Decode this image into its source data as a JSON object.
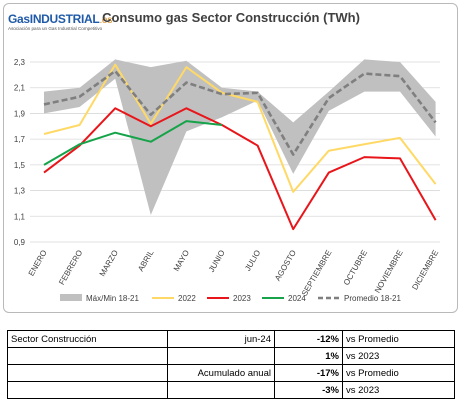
{
  "logo": {
    "name": "GasINDUSTRIAL",
    "suffix": ".es",
    "tagline": "Asociación para un Gas Industrial Competitivo"
  },
  "chart_data": {
    "type": "line",
    "title": "Consumo gas Sector Construcción (TWh)",
    "categories": [
      "ENERO",
      "FEBRERO",
      "MARZO",
      "ABRIL",
      "MAYO",
      "JUNIO",
      "JULIO",
      "AGOSTO",
      "SEPTIEMBRE",
      "OCTUBRE",
      "NOVIEMBRE",
      "DICIEMBRE"
    ],
    "ylim": [
      0.9,
      2.3
    ],
    "yticks": [
      "0,9",
      "1,1",
      "1,3",
      "1,5",
      "1,7",
      "1,9",
      "2,1",
      "2,3"
    ],
    "ytick_values": [
      0.9,
      1.1,
      1.3,
      1.5,
      1.7,
      1.9,
      2.1,
      2.3
    ],
    "grid": true,
    "legend_position": "bottom",
    "band": {
      "name": "Máx/Min 18-21",
      "color": "#c0c0c0",
      "max": [
        2.07,
        2.1,
        2.32,
        2.26,
        2.31,
        2.1,
        2.07,
        1.83,
        2.07,
        2.32,
        2.3,
        1.99
      ],
      "min": [
        1.9,
        1.95,
        2.17,
        1.11,
        1.76,
        1.87,
        2.0,
        1.43,
        1.92,
        2.07,
        2.07,
        1.72
      ]
    },
    "series": [
      {
        "name": "2022",
        "color": "#ffd966",
        "dashed": false,
        "values": [
          1.74,
          1.81,
          2.28,
          1.82,
          2.26,
          2.06,
          1.99,
          1.29,
          1.61,
          1.66,
          1.71,
          1.35
        ]
      },
      {
        "name": "2023",
        "color": "#e8161b",
        "dashed": false,
        "values": [
          1.44,
          1.65,
          1.94,
          1.8,
          1.94,
          1.81,
          1.65,
          1.0,
          1.44,
          1.56,
          1.55,
          1.07
        ]
      },
      {
        "name": "2024",
        "color": "#16a34a",
        "dashed": false,
        "values": [
          1.5,
          1.66,
          1.75,
          1.68,
          1.84,
          1.81,
          null,
          null,
          null,
          null,
          null,
          null
        ]
      },
      {
        "name": "Promedio 18-21",
        "color": "#7f7f7f",
        "dashed": true,
        "values": [
          1.97,
          2.03,
          2.23,
          1.89,
          2.14,
          2.05,
          2.06,
          1.58,
          2.02,
          2.21,
          2.19,
          1.83
        ]
      }
    ]
  },
  "summary": {
    "sector": "Sector Construcción",
    "period": "jun-24",
    "accum_label": "Acumulado anual",
    "rows": [
      {
        "value": "-12%",
        "label": "vs Promedio"
      },
      {
        "value": "1%",
        "label": "vs 2023"
      },
      {
        "value": "-17%",
        "label": "vs Promedio"
      },
      {
        "value": "-3%",
        "label": "vs 2023"
      }
    ]
  }
}
